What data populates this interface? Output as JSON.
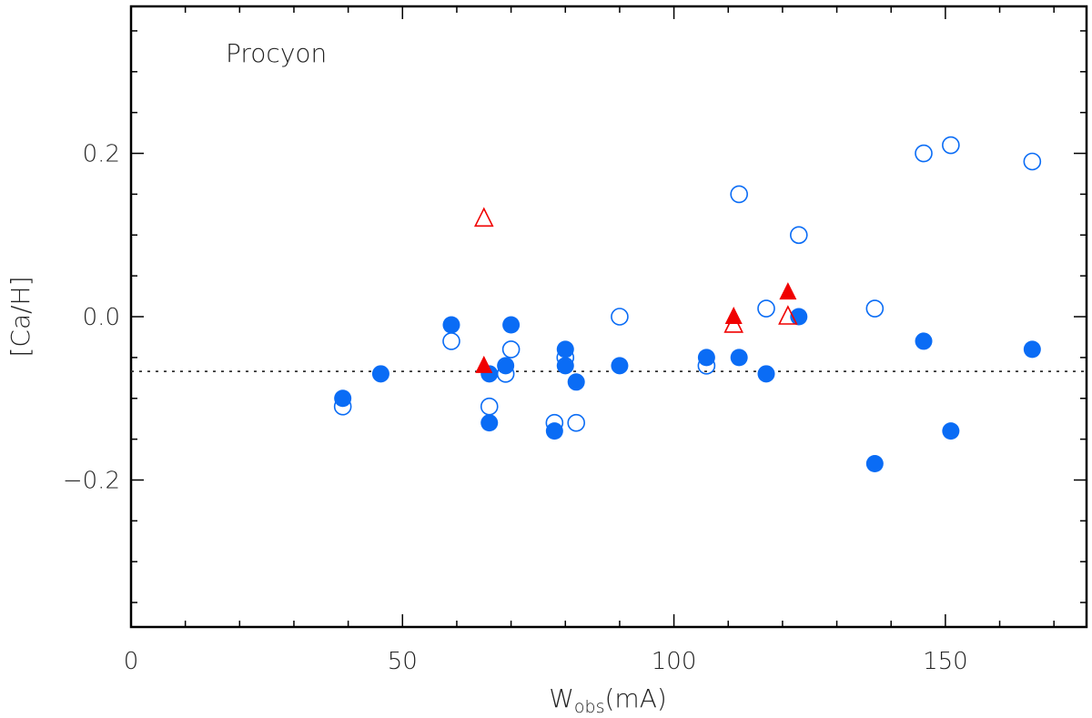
{
  "chart_data": {
    "type": "scatter",
    "title": "",
    "annotation": "Procyon",
    "xlabel_main": "W",
    "xlabel_sub": "obs",
    "xlabel_tail": "(mA)",
    "ylabel": "[Ca/H]",
    "xlim": [
      0,
      176
    ],
    "ylim": [
      -0.38,
      0.38
    ],
    "xticks": [
      0,
      50,
      100,
      150
    ],
    "xtick_labels": [
      "0",
      "50",
      "100",
      "150"
    ],
    "yticks": [
      -0.2,
      0.0,
      0.2
    ],
    "ytick_labels": [
      "−0.2",
      "0.0",
      "0.2"
    ],
    "reference_line": {
      "y": -0.067,
      "style": "dotted"
    },
    "colors": {
      "blue": "#0a6cf5",
      "red": "#f00000"
    },
    "series": [
      {
        "name": "filled-circles",
        "marker": "circle-filled",
        "color": "#0a6cf5",
        "points": [
          [
            39,
            -0.1
          ],
          [
            46,
            -0.07
          ],
          [
            59,
            -0.01
          ],
          [
            66,
            -0.07
          ],
          [
            66,
            -0.13
          ],
          [
            69,
            -0.06
          ],
          [
            70,
            -0.01
          ],
          [
            78,
            -0.14
          ],
          [
            80,
            -0.04
          ],
          [
            80,
            -0.06
          ],
          [
            82,
            -0.08
          ],
          [
            90,
            -0.06
          ],
          [
            106,
            -0.05
          ],
          [
            112,
            -0.05
          ],
          [
            117,
            -0.07
          ],
          [
            123,
            0.0
          ],
          [
            137,
            -0.18
          ],
          [
            146,
            -0.03
          ],
          [
            151,
            -0.14
          ],
          [
            166,
            -0.04
          ]
        ]
      },
      {
        "name": "open-circles",
        "marker": "circle-open",
        "color": "#0a6cf5",
        "points": [
          [
            39,
            -0.11
          ],
          [
            59,
            -0.03
          ],
          [
            66,
            -0.11
          ],
          [
            69,
            -0.07
          ],
          [
            70,
            -0.04
          ],
          [
            78,
            -0.13
          ],
          [
            80,
            -0.05
          ],
          [
            82,
            -0.13
          ],
          [
            90,
            0.0
          ],
          [
            106,
            -0.06
          ],
          [
            112,
            0.15
          ],
          [
            117,
            0.01
          ],
          [
            123,
            0.1
          ],
          [
            137,
            0.01
          ],
          [
            146,
            0.2
          ],
          [
            151,
            0.21
          ],
          [
            166,
            0.19
          ]
        ]
      },
      {
        "name": "filled-triangles",
        "marker": "triangle-filled",
        "color": "#f00000",
        "points": [
          [
            65,
            -0.06
          ],
          [
            111,
            0.0
          ],
          [
            121,
            0.03
          ]
        ]
      },
      {
        "name": "open-triangles",
        "marker": "triangle-open",
        "color": "#f00000",
        "points": [
          [
            65,
            0.12
          ],
          [
            111,
            -0.01
          ],
          [
            121,
            0.0
          ]
        ]
      }
    ]
  }
}
